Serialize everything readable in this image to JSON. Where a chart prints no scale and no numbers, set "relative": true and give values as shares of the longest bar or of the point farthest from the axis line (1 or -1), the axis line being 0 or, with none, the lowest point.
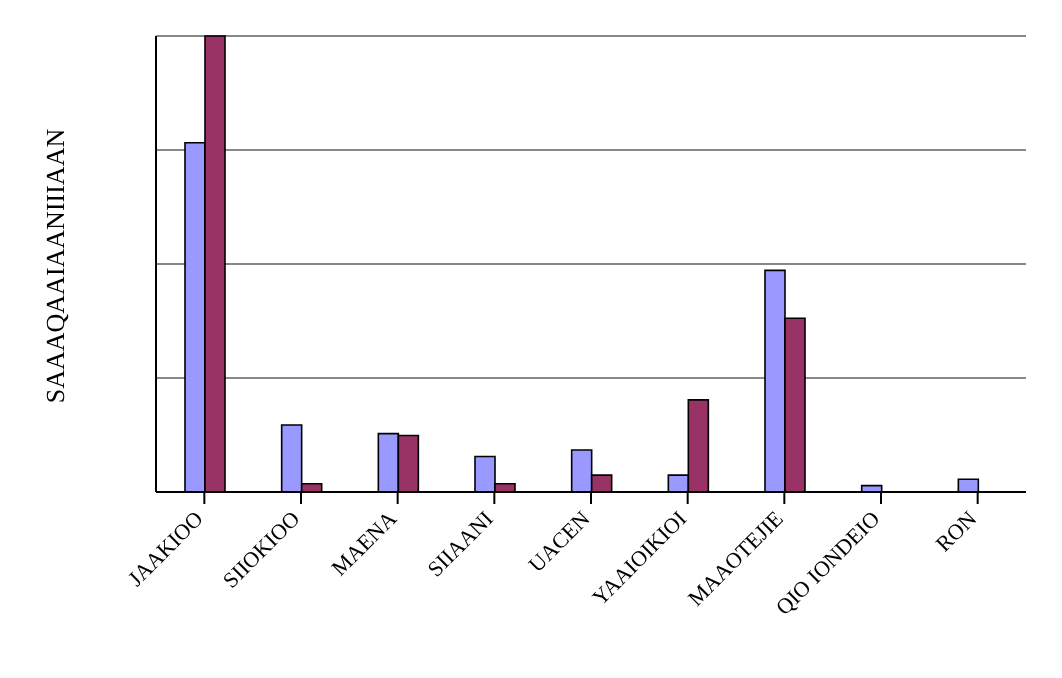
{
  "chart_data": {
    "type": "bar",
    "relative": true,
    "ylabel": "SAAAQAAIAANIIIAAN",
    "categories": [
      "JAAKIOO",
      "SIIOKIOO",
      "MAENA",
      "SIIAANI",
      "UACEN",
      "YAAIOIKIOI",
      "MAAOTEJIE",
      "QIO IONDEIO",
      "RON"
    ],
    "series": [
      {
        "color": "#9999ff",
        "values": [
          0.766,
          0.147,
          0.128,
          0.078,
          0.092,
          0.037,
          0.486,
          0.014,
          0.028
        ]
      },
      {
        "color": "#993366",
        "values": [
          1,
          0.018,
          0.124,
          0.018,
          0.037,
          0.202,
          0.381,
          0,
          0
        ]
      }
    ],
    "grid": "y",
    "legend": false
  }
}
